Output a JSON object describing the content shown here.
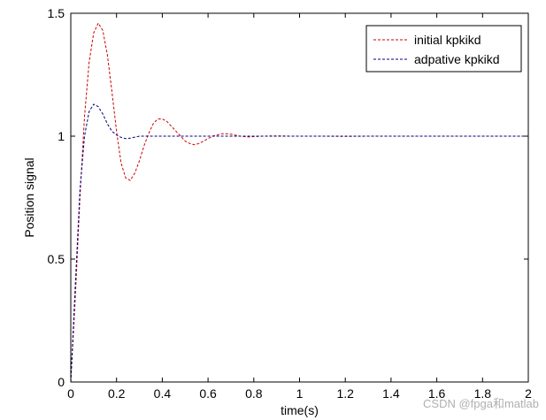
{
  "chart_data": {
    "type": "line",
    "title": "",
    "xlabel": "time(s)",
    "ylabel": "Position signal",
    "xlim": [
      0,
      2
    ],
    "ylim": [
      0,
      1.5
    ],
    "grid": false,
    "legend_position": "top-right",
    "xticks": [
      0,
      0.2,
      0.4,
      0.6,
      0.8,
      1,
      1.2,
      1.4,
      1.6,
      1.8,
      2
    ],
    "xtick_labels": [
      "0",
      "0.2",
      "0.4",
      "0.6",
      "0.8",
      "1",
      "1.2",
      "1.4",
      "1.6",
      "1.8",
      "2"
    ],
    "yticks": [
      0,
      0.5,
      1,
      1.5
    ],
    "ytick_labels": [
      "0",
      "0.5",
      "1",
      "1.5"
    ],
    "series": [
      {
        "name": "initial kpkikd",
        "color": "#cc0000",
        "style": "dashed",
        "x": [
          0,
          0.02,
          0.04,
          0.06,
          0.08,
          0.1,
          0.12,
          0.14,
          0.16,
          0.18,
          0.2,
          0.22,
          0.24,
          0.26,
          0.28,
          0.3,
          0.32,
          0.34,
          0.36,
          0.38,
          0.4,
          0.42,
          0.44,
          0.46,
          0.48,
          0.5,
          0.52,
          0.54,
          0.56,
          0.58,
          0.6,
          0.62,
          0.64,
          0.66,
          0.68,
          0.7,
          0.72,
          0.74,
          0.76,
          0.78,
          0.8,
          0.84,
          0.88,
          0.92,
          0.96,
          1.0,
          1.1,
          1.2,
          1.3,
          1.4,
          1.5,
          1.6,
          1.7,
          1.8,
          1.9,
          2.0
        ],
        "y": [
          0,
          0.35,
          0.75,
          1.08,
          1.3,
          1.42,
          1.46,
          1.43,
          1.33,
          1.18,
          1.02,
          0.89,
          0.83,
          0.82,
          0.85,
          0.9,
          0.96,
          1.01,
          1.05,
          1.07,
          1.07,
          1.06,
          1.04,
          1.02,
          1.0,
          0.98,
          0.97,
          0.965,
          0.97,
          0.98,
          0.99,
          1.0,
          1.005,
          1.01,
          1.01,
          1.008,
          1.004,
          1.0,
          0.998,
          0.997,
          0.998,
          1.0,
          1.001,
          1.001,
          1.0,
          1.0,
          1.0,
          0.999,
          1.0,
          1.0,
          1.0,
          1.0,
          1.0,
          1.0,
          1.0,
          1.0
        ]
      },
      {
        "name": "adpative kpkikd",
        "color": "#000080",
        "style": "dashed",
        "x": [
          0,
          0.02,
          0.04,
          0.06,
          0.08,
          0.1,
          0.12,
          0.14,
          0.16,
          0.18,
          0.2,
          0.22,
          0.24,
          0.26,
          0.28,
          0.3,
          0.34,
          0.38,
          0.42,
          0.46,
          0.5,
          0.6,
          0.7,
          0.8,
          1.0,
          1.2,
          1.4,
          1.6,
          1.8,
          2.0
        ],
        "y": [
          0,
          0.4,
          0.78,
          1.0,
          1.1,
          1.13,
          1.12,
          1.09,
          1.05,
          1.02,
          1.005,
          0.995,
          0.99,
          0.992,
          0.996,
          1.0,
          1.0,
          1.0,
          1.0,
          1.0,
          1.0,
          1.0,
          1.0,
          1.0,
          1.0,
          1.0,
          1.0,
          1.0,
          1.0,
          1.0
        ]
      }
    ]
  },
  "watermark": "CSDN @fpga和matlab"
}
